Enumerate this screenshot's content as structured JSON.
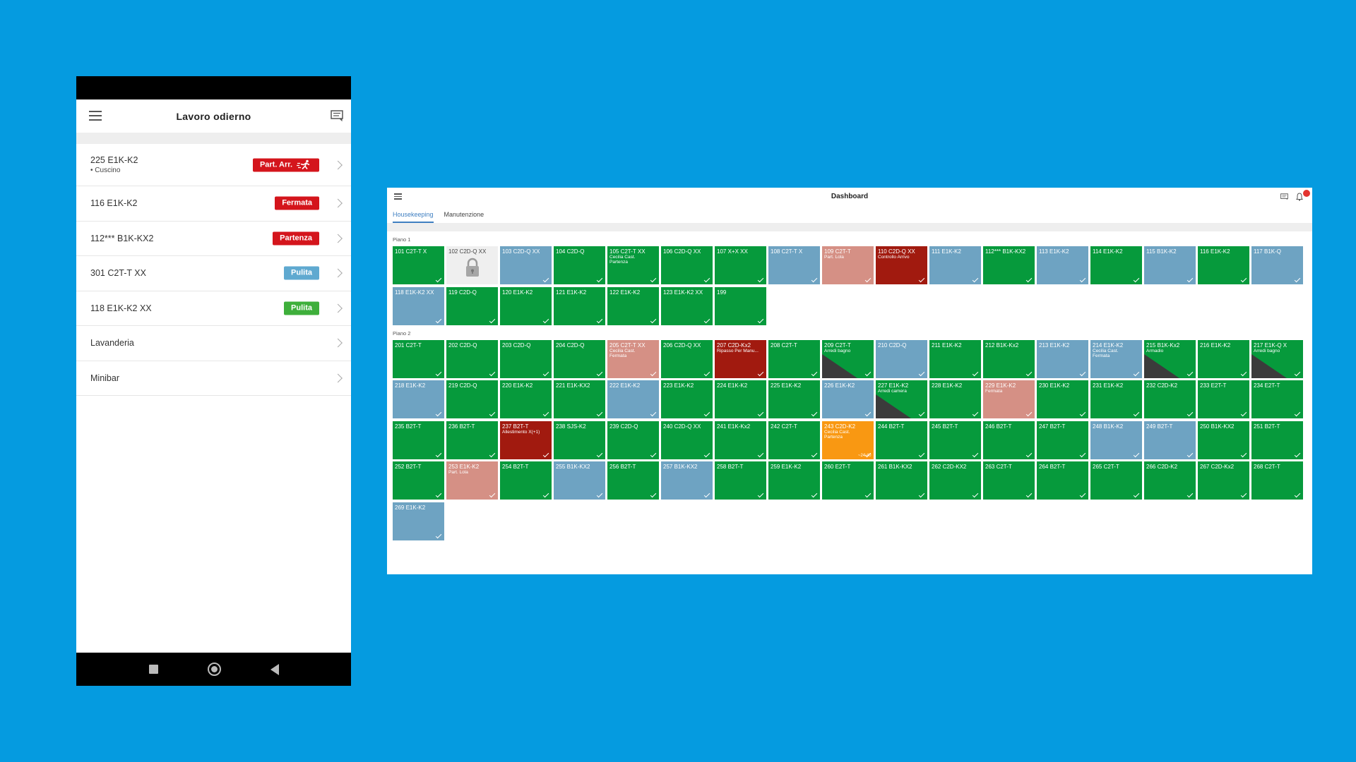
{
  "colors": {
    "background": "#059BE0",
    "green": "#069A3C",
    "blue": "#6EA3C2",
    "salmon": "#D59085",
    "darkred": "#A11A0F",
    "orange": "#F99812",
    "grey": "#EFEFEF",
    "badge_red": "#D4151C",
    "badge_blue": "#5FA9D0",
    "badge_green": "#3EAF3B"
  },
  "phone": {
    "title": "Lavoro odierno",
    "items": [
      {
        "name": "225 E1K-K2",
        "sub": "• Cuscino",
        "badge": "Part. Arr.",
        "badge_color": "#D4151C",
        "icon": "running-person-icon"
      },
      {
        "name": "116 E1K-K2",
        "sub": "",
        "badge": "Fermata",
        "badge_color": "#D4151C"
      },
      {
        "name": "112*** B1K-KX2",
        "sub": "",
        "badge": "Partenza",
        "badge_color": "#D4151C"
      },
      {
        "name": "301 C2T-T XX",
        "sub": "",
        "badge": "Pulita",
        "badge_color": "#5FA9D0"
      },
      {
        "name": "118 E1K-K2 XX",
        "sub": "",
        "badge": "Pulita",
        "badge_color": "#3EAF3B"
      },
      {
        "name": "Lavanderia",
        "sub": "",
        "badge": ""
      },
      {
        "name": "Minibar",
        "sub": "",
        "badge": ""
      }
    ]
  },
  "dashboard": {
    "title": "Dashboard",
    "notification_count": "",
    "tabs": [
      "Housekeeping",
      "Manutenzione"
    ],
    "floors": [
      {
        "title": "Piano 1",
        "rooms": [
          {
            "name": "101 C2T-T X",
            "color": "green",
            "note": ""
          },
          {
            "name": "102 C2D-Q XX",
            "color": "grey",
            "note": "",
            "locked": true
          },
          {
            "name": "103 C2D-Q XX",
            "color": "blue",
            "note": ""
          },
          {
            "name": "104 C2D-Q",
            "color": "green",
            "note": ""
          },
          {
            "name": "105 C2T-T XX",
            "color": "green",
            "note": "Cecilia Cast.\nPartenza"
          },
          {
            "name": "106 C2D-Q XX",
            "color": "green",
            "note": ""
          },
          {
            "name": "107 X+X XX",
            "color": "green",
            "note": ""
          },
          {
            "name": "108 C2T-T X",
            "color": "blue",
            "note": ""
          },
          {
            "name": "109 C2T-T",
            "color": "salmon",
            "note": "Part. Lola"
          },
          {
            "name": "110 C2D-Q XX",
            "color": "darkred",
            "note": "Controllo Arrivo"
          },
          {
            "name": "111 E1K-K2",
            "color": "blue",
            "note": ""
          },
          {
            "name": "112*** B1K-KX2",
            "color": "green",
            "note": ""
          },
          {
            "name": "113 E1K-K2",
            "color": "blue",
            "note": ""
          },
          {
            "name": "114 E1K-K2",
            "color": "green",
            "note": ""
          },
          {
            "name": "115 B1K-K2",
            "color": "blue",
            "note": ""
          },
          {
            "name": "116 E1K-K2",
            "color": "green",
            "note": ""
          },
          {
            "name": "117 B1K-Q",
            "color": "blue",
            "note": ""
          },
          {
            "name": "118 E1K-K2 XX",
            "color": "blue",
            "note": ""
          },
          {
            "name": "119 C2D-Q",
            "color": "green",
            "note": ""
          },
          {
            "name": "120 E1K-K2",
            "color": "green",
            "note": ""
          },
          {
            "name": "121 E1K-K2",
            "color": "green",
            "note": ""
          },
          {
            "name": "122 E1K-K2",
            "color": "green",
            "note": ""
          },
          {
            "name": "123 E1K-K2 XX",
            "color": "green",
            "note": ""
          },
          {
            "name": "199",
            "color": "green",
            "note": ""
          }
        ]
      },
      {
        "title": "Piano 2",
        "rooms": [
          {
            "name": "201 C2T-T",
            "color": "green",
            "note": ""
          },
          {
            "name": "202 C2D-Q",
            "color": "green",
            "note": ""
          },
          {
            "name": "203 C2D-Q",
            "color": "green",
            "note": ""
          },
          {
            "name": "204 C2D-Q",
            "color": "green",
            "note": ""
          },
          {
            "name": "205 C2T-T XX",
            "color": "salmon",
            "note": "Cecilia Cast.\nFermata"
          },
          {
            "name": "206 C2D-Q XX",
            "color": "green",
            "note": ""
          },
          {
            "name": "207 C2D-Kx2",
            "color": "darkred",
            "note": "Ripasso Per Manu..."
          },
          {
            "name": "208 C2T-T",
            "color": "green",
            "note": ""
          },
          {
            "name": "209 C2T-T",
            "color": "green",
            "note": "Arredi bagno",
            "diag": true
          },
          {
            "name": "210 C2D-Q",
            "color": "blue",
            "note": ""
          },
          {
            "name": "211 E1K-K2",
            "color": "green",
            "note": ""
          },
          {
            "name": "212 B1K-Kx2",
            "color": "green",
            "note": ""
          },
          {
            "name": "213 E1K-K2",
            "color": "blue",
            "note": ""
          },
          {
            "name": "214 E1K-K2",
            "color": "blue",
            "note": "Cecilia Cast.\nFermata"
          },
          {
            "name": "215 B1K-Kx2",
            "color": "green",
            "note": "Armadio",
            "diag": true
          },
          {
            "name": "216 E1K-K2",
            "color": "green",
            "note": ""
          },
          {
            "name": "217 E1K-Q X",
            "color": "green",
            "note": "Arredi bagno",
            "diag": true
          },
          {
            "name": "218 E1K-K2",
            "color": "blue",
            "note": ""
          },
          {
            "name": "219 C2D-Q",
            "color": "green",
            "note": ""
          },
          {
            "name": "220 E1K-K2",
            "color": "green",
            "note": ""
          },
          {
            "name": "221 E1K-KX2",
            "color": "green",
            "note": ""
          },
          {
            "name": "222 E1K-K2",
            "color": "blue",
            "note": ""
          },
          {
            "name": "223 E1K-K2",
            "color": "green",
            "note": ""
          },
          {
            "name": "224 E1K-K2",
            "color": "green",
            "note": ""
          },
          {
            "name": "225 E1K-K2",
            "color": "green",
            "note": ""
          },
          {
            "name": "226 E1K-K2",
            "color": "blue",
            "note": ""
          },
          {
            "name": "227 E1K-K2",
            "color": "green",
            "note": "Arredi camera",
            "diag": true
          },
          {
            "name": "228 E1K-K2",
            "color": "green",
            "note": ""
          },
          {
            "name": "229 E1K-K2",
            "color": "salmon",
            "note": "Fermata"
          },
          {
            "name": "230 E1K-K2",
            "color": "green",
            "note": ""
          },
          {
            "name": "231 E1K-K2",
            "color": "green",
            "note": ""
          },
          {
            "name": "232 C2D-K2",
            "color": "green",
            "note": ""
          },
          {
            "name": "233 E2T-T",
            "color": "green",
            "note": ""
          },
          {
            "name": "234 E2T-T",
            "color": "green",
            "note": ""
          },
          {
            "name": "235 B2T-T",
            "color": "green",
            "note": ""
          },
          {
            "name": "236 B2T-T",
            "color": "green",
            "note": ""
          },
          {
            "name": "237 B2T-T",
            "color": "darkred",
            "note": "Allestimento X(+1)"
          },
          {
            "name": "238 SJS-K2",
            "color": "green",
            "note": ""
          },
          {
            "name": "239 C2D-Q",
            "color": "green",
            "note": ""
          },
          {
            "name": "240 C2D-Q XX",
            "color": "green",
            "note": ""
          },
          {
            "name": "241 E1K-Kx2",
            "color": "green",
            "note": ""
          },
          {
            "name": "242 C2T-T",
            "color": "green",
            "note": ""
          },
          {
            "name": "243 C2D-K2",
            "color": "orange",
            "note": "Cecilia Cast.\nPartenza",
            "timer": "~24:40"
          },
          {
            "name": "244 B2T-T",
            "color": "green",
            "note": ""
          },
          {
            "name": "245 B2T-T",
            "color": "green",
            "note": ""
          },
          {
            "name": "246 B2T-T",
            "color": "green",
            "note": ""
          },
          {
            "name": "247 B2T-T",
            "color": "green",
            "note": ""
          },
          {
            "name": "248 B1K-K2",
            "color": "blue",
            "note": ""
          },
          {
            "name": "249 B2T-T",
            "color": "blue",
            "note": ""
          },
          {
            "name": "250 B1K-KX2",
            "color": "green",
            "note": ""
          },
          {
            "name": "251 B2T-T",
            "color": "green",
            "note": ""
          },
          {
            "name": "252 B2T-T",
            "color": "green",
            "note": ""
          },
          {
            "name": "253 E1K-K2",
            "color": "salmon",
            "note": "Part. Lola"
          },
          {
            "name": "254 B2T-T",
            "color": "green",
            "note": ""
          },
          {
            "name": "255 B1K-KX2",
            "color": "blue",
            "note": ""
          },
          {
            "name": "256 B2T-T",
            "color": "green",
            "note": ""
          },
          {
            "name": "257 B1K-KX2",
            "color": "blue",
            "note": ""
          },
          {
            "name": "258 B2T-T",
            "color": "green",
            "note": ""
          },
          {
            "name": "259 E1K-K2",
            "color": "green",
            "note": ""
          },
          {
            "name": "260 E2T-T",
            "color": "green",
            "note": ""
          },
          {
            "name": "261 B1K-KX2",
            "color": "green",
            "note": ""
          },
          {
            "name": "262 C2D-KX2",
            "color": "green",
            "note": ""
          },
          {
            "name": "263 C2T-T",
            "color": "green",
            "note": ""
          },
          {
            "name": "264 B2T-T",
            "color": "green",
            "note": ""
          },
          {
            "name": "265 C2T-T",
            "color": "green",
            "note": ""
          },
          {
            "name": "266 C2D-K2",
            "color": "green",
            "note": ""
          },
          {
            "name": "267 C2D-Kx2",
            "color": "green",
            "note": ""
          },
          {
            "name": "268 C2T-T",
            "color": "green",
            "note": ""
          },
          {
            "name": "269 E1K-K2",
            "color": "blue",
            "note": ""
          }
        ]
      }
    ]
  }
}
